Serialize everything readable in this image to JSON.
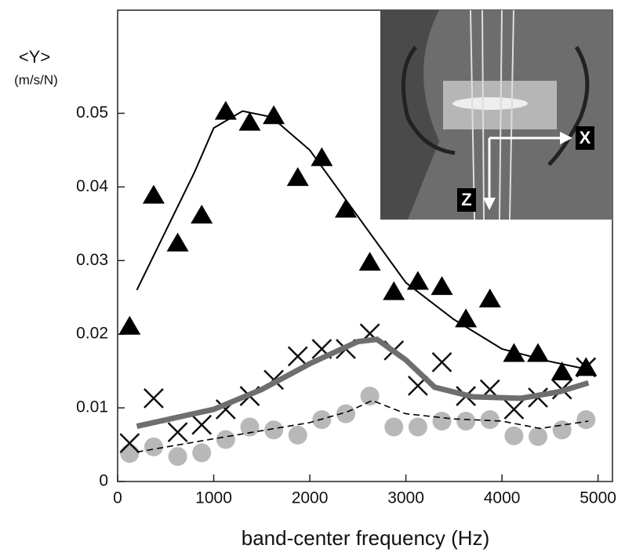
{
  "chart_data": {
    "type": "scatter",
    "y_label": "<Y>",
    "y_unit": "(m/s/N)",
    "x_label": "band-center frequency (Hz)",
    "xlim": [
      0,
      5150
    ],
    "ylim": [
      0,
      0.064
    ],
    "xticks": [
      0,
      1000,
      2000,
      3000,
      4000,
      5000
    ],
    "yticks": [
      0,
      0.01,
      0.02,
      0.03,
      0.04,
      0.05
    ],
    "inset_labels": [
      "X",
      "Z"
    ],
    "series": [
      {
        "marker": "triangle",
        "color": "#000000",
        "x": [
          125,
          375,
          625,
          875,
          1125,
          1375,
          1625,
          1875,
          2125,
          2375,
          2625,
          2875,
          3125,
          3375,
          3625,
          3875,
          4125,
          4375,
          4625,
          4875
        ],
        "values": [
          0.021,
          0.0388,
          0.0323,
          0.0361,
          0.0502,
          0.0487,
          0.0496,
          0.0412,
          0.0439,
          0.0369,
          0.0297,
          0.0257,
          0.0271,
          0.0264,
          0.022,
          0.0247,
          0.0173,
          0.0173,
          0.0148,
          0.0154
        ]
      },
      {
        "marker": "cross",
        "color": "#111111",
        "x": [
          125,
          375,
          625,
          875,
          1125,
          1375,
          1625,
          1875,
          2125,
          2375,
          2625,
          2875,
          3125,
          3375,
          3625,
          3875,
          4125,
          4375,
          4625,
          4875
        ],
        "values": [
          0.0052,
          0.0113,
          0.0067,
          0.0077,
          0.0098,
          0.0116,
          0.0138,
          0.017,
          0.018,
          0.018,
          0.0201,
          0.0178,
          0.013,
          0.0162,
          0.0116,
          0.0125,
          0.0098,
          0.0114,
          0.0125,
          0.0155
        ]
      },
      {
        "marker": "circle",
        "color": "#b8b8b8",
        "x": [
          125,
          375,
          625,
          875,
          1125,
          1375,
          1625,
          1875,
          2125,
          2375,
          2625,
          2875,
          3125,
          3375,
          3625,
          3875,
          4125,
          4375,
          4625,
          4875
        ],
        "values": [
          0.0038,
          0.0047,
          0.0034,
          0.0039,
          0.0057,
          0.0074,
          0.007,
          0.0063,
          0.0084,
          0.0092,
          0.0116,
          0.0074,
          0.0074,
          0.0082,
          0.0082,
          0.0084,
          0.0062,
          0.0061,
          0.007,
          0.0084
        ]
      },
      {
        "marker": "line",
        "color": "#000000",
        "width": 2,
        "dash": "none",
        "x": [
          200,
          500,
          800,
          1000,
          1300,
          1600,
          2000,
          2500,
          3000,
          3500,
          4000,
          4500,
          4900
        ],
        "values": [
          0.026,
          0.034,
          0.042,
          0.048,
          0.0503,
          0.0495,
          0.045,
          0.036,
          0.027,
          0.022,
          0.018,
          0.0163,
          0.0152
        ]
      },
      {
        "marker": "line",
        "color": "#6e6e6e",
        "width": 7,
        "dash": "none",
        "x": [
          200,
          1000,
          1500,
          2000,
          2500,
          2700,
          3000,
          3300,
          3700,
          4200,
          4600,
          4900
        ],
        "values": [
          0.0075,
          0.0098,
          0.0125,
          0.016,
          0.019,
          0.0193,
          0.0165,
          0.0128,
          0.0115,
          0.0113,
          0.0122,
          0.0134
        ]
      },
      {
        "marker": "line",
        "color": "#000000",
        "width": 1.6,
        "dash": "8 5",
        "x": [
          200,
          1000,
          2000,
          2400,
          2650,
          3000,
          3500,
          4000,
          4400,
          4900
        ],
        "values": [
          0.004,
          0.0058,
          0.008,
          0.0095,
          0.011,
          0.0092,
          0.0085,
          0.0082,
          0.0072,
          0.0082
        ]
      }
    ]
  }
}
